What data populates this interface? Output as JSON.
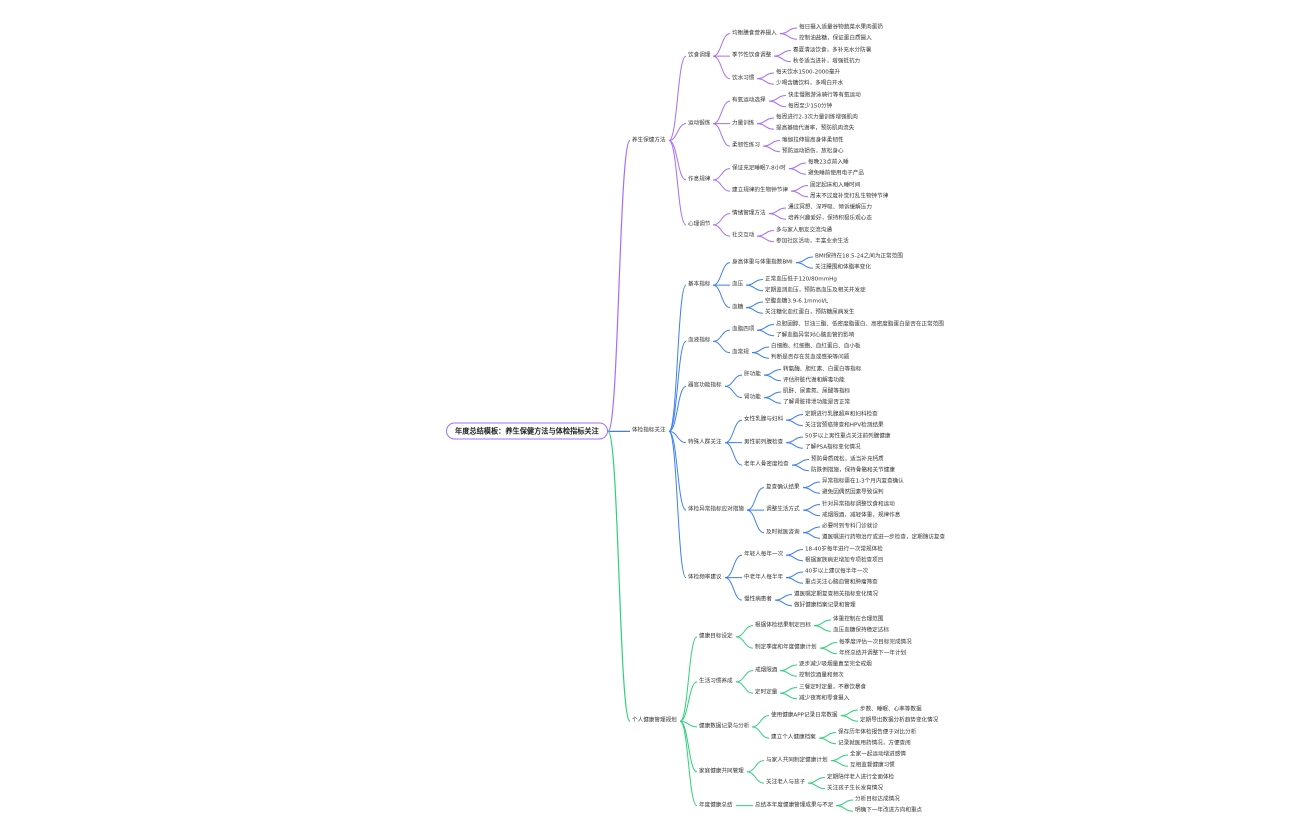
{
  "mindmap": {
    "root": "年度总结模板：养生保健方法与体检指标关注",
    "branches": [
      {
        "label": "养生保健方法",
        "color": "#a66cff",
        "children": [
          {
            "label": "饮食调理",
            "children": [
              {
                "label": "均衡膳食营养摄入",
                "children": [
                  {
                    "label": "每日摄入适量谷物蔬菜水果肉蛋奶"
                  },
                  {
                    "label": "控制油盐糖，保证蛋白质摄入"
                  }
                ]
              },
              {
                "label": "季节性饮食调整",
                "children": [
                  {
                    "label": "春夏清淡饮食，多补充水分防暑"
                  },
                  {
                    "label": "秋冬适当进补，增强抵抗力"
                  }
                ]
              },
              {
                "label": "饮水习惯",
                "children": [
                  {
                    "label": "每天饮水1500-2000毫升"
                  },
                  {
                    "label": "少喝含糖饮料，多喝白开水"
                  }
                ]
              }
            ]
          },
          {
            "label": "运动锻炼",
            "children": [
              {
                "label": "有氧运动选择",
                "children": [
                  {
                    "label": "快走慢跑游泳骑行等有氧运动"
                  },
                  {
                    "label": "每周至少150分钟"
                  }
                ]
              },
              {
                "label": "力量训练",
                "children": [
                  {
                    "label": "每周进行2-3次力量训练增强肌肉"
                  },
                  {
                    "label": "提高基础代谢率，预防肌肉流失"
                  }
                ]
              },
              {
                "label": "柔韧性练习",
                "children": [
                  {
                    "label": "瑜伽拉伸提高身体柔韧性"
                  },
                  {
                    "label": "预防运动损伤，放松身心"
                  }
                ]
              }
            ]
          },
          {
            "label": "作息规律",
            "children": [
              {
                "label": "保证充足睡眠7-8小时",
                "children": [
                  {
                    "label": "每晚23点前入睡"
                  },
                  {
                    "label": "避免睡前使用电子产品"
                  }
                ]
              },
              {
                "label": "建立规律的生物钟节律",
                "children": [
                  {
                    "label": "固定起床和入睡时间"
                  },
                  {
                    "label": "周末不过度补觉打乱生物钟节律"
                  }
                ]
              }
            ]
          },
          {
            "label": "心理调节",
            "children": [
              {
                "label": "情绪管理方法",
                "children": [
                  {
                    "label": "通过冥想、深呼吸、倾诉缓解压力"
                  },
                  {
                    "label": "培养兴趣爱好，保持积极乐观心态"
                  }
                ]
              },
              {
                "label": "社交互动",
                "children": [
                  {
                    "label": "多与家人朋友交流沟通"
                  },
                  {
                    "label": "参加社区活动，丰富业余生活"
                  }
                ]
              }
            ]
          }
        ]
      },
      {
        "label": "体检指标关注",
        "color": "#3d7ef5",
        "children": [
          {
            "label": "基本指标",
            "children": [
              {
                "label": "身高体重与体重指数BMI",
                "children": [
                  {
                    "label": "BMI保持在18.5-24之间为正常范围"
                  },
                  {
                    "label": "关注腰围和体脂率变化"
                  }
                ]
              },
              {
                "label": "血压",
                "children": [
                  {
                    "label": "正常血压低于120/80mmHg"
                  },
                  {
                    "label": "定期监测血压，预防高血压及相关并发症"
                  }
                ]
              },
              {
                "label": "血糖",
                "children": [
                  {
                    "label": "空腹血糖3.9-6.1mmol/L"
                  },
                  {
                    "label": "关注糖化血红蛋白，预防糖尿病发生"
                  }
                ]
              }
            ]
          },
          {
            "label": "血液指标",
            "children": [
              {
                "label": "血脂四项",
                "children": [
                  {
                    "label": "总胆固醇、甘油三酯、低密度脂蛋白、高密度脂蛋白是否在正常范围"
                  },
                  {
                    "label": "了解血脂异常对心脑血管的影响"
                  }
                ]
              },
              {
                "label": "血常规",
                "children": [
                  {
                    "label": "白细胞、红细胞、血红蛋白、血小板"
                  },
                  {
                    "label": "判断是否存在贫血或感染等问题"
                  }
                ]
              }
            ]
          },
          {
            "label": "器官功能指标",
            "children": [
              {
                "label": "肝功能",
                "children": [
                  {
                    "label": "转氨酶、胆红素、白蛋白等指标"
                  },
                  {
                    "label": "评估肝脏代谢和解毒功能"
                  }
                ]
              },
              {
                "label": "肾功能",
                "children": [
                  {
                    "label": "肌酐、尿素氮、尿酸等指标"
                  },
                  {
                    "label": "了解肾脏排泄功能是否正常"
                  }
                ]
              }
            ]
          },
          {
            "label": "特殊人群关注",
            "children": [
              {
                "label": "女性乳腺与妇科",
                "children": [
                  {
                    "label": "定期进行乳腺超声和妇科检查"
                  },
                  {
                    "label": "关注宫颈癌筛查和HPV检测结果"
                  }
                ]
              },
              {
                "label": "男性前列腺检查",
                "children": [
                  {
                    "label": "50岁以上男性重点关注前列腺健康"
                  },
                  {
                    "label": "了解PSA指标变化情况"
                  }
                ]
              },
              {
                "label": "老年人骨密度检查",
                "children": [
                  {
                    "label": "预防骨质疏松，适当补充钙质"
                  },
                  {
                    "label": "防跌倒措施，保持骨骼和关节健康"
                  }
                ]
              }
            ]
          },
          {
            "label": "体检异常指标应对措施",
            "children": [
              {
                "label": "复查确认结果",
                "children": [
                  {
                    "label": "异常指标需在1-3个月内复查确认"
                  },
                  {
                    "label": "避免因偶然因素导致误判"
                  }
                ]
              },
              {
                "label": "调整生活方式",
                "children": [
                  {
                    "label": "针对异常指标调整饮食和运动"
                  },
                  {
                    "label": "戒烟限酒，减轻体重，规律作息"
                  }
                ]
              },
              {
                "label": "及时就医咨询",
                "children": [
                  {
                    "label": "必要时到专科门诊就诊"
                  },
                  {
                    "label": "遵医嘱进行药物治疗或进一步检查，定期随访复查"
                  }
                ]
              }
            ]
          },
          {
            "label": "体检频率建议",
            "children": [
              {
                "label": "年轻人每年一次",
                "children": [
                  {
                    "label": "18-40岁每年进行一次常规体检"
                  },
                  {
                    "label": "根据家族病史增加专项检查项目"
                  }
                ]
              },
              {
                "label": "中老年人每半年",
                "children": [
                  {
                    "label": "40岁以上建议每半年一次"
                  },
                  {
                    "label": "重点关注心脑血管和肿瘤筛查"
                  }
                ]
              },
              {
                "label": "慢性病患者",
                "children": [
                  {
                    "label": "遵医嘱定期复查相关指标变化情况"
                  },
                  {
                    "label": "做好健康档案记录和管理"
                  }
                ]
              }
            ]
          }
        ]
      },
      {
        "label": "个人健康管理规划",
        "color": "#2fd07a",
        "children": [
          {
            "label": "健康目标设定",
            "children": [
              {
                "label": "根据体检结果制定目标",
                "children": [
                  {
                    "label": "体重控制在合理范围"
                  },
                  {
                    "label": "血压血糖保持稳定达标"
                  }
                ]
              },
              {
                "label": "制定季度和年度健康计划",
                "children": [
                  {
                    "label": "每季度评估一次目标完成情况"
                  },
                  {
                    "label": "年终总结并调整下一年计划"
                  }
                ]
              }
            ]
          },
          {
            "label": "生活习惯养成",
            "children": [
              {
                "label": "戒烟限酒",
                "children": [
                  {
                    "label": "逐步减少吸烟量直至完全戒烟"
                  },
                  {
                    "label": "控制饮酒量和频次"
                  }
                ]
              },
              {
                "label": "定时定量",
                "children": [
                  {
                    "label": "三餐定时定量，不暴饮暴食"
                  },
                  {
                    "label": "减少夜宵和零食摄入"
                  }
                ]
              }
            ]
          },
          {
            "label": "健康数据记录与分析",
            "children": [
              {
                "label": "使用健康APP记录日常数据",
                "children": [
                  {
                    "label": "步数、睡眠、心率等数据"
                  },
                  {
                    "label": "定期导出数据分析趋势变化情况"
                  }
                ]
              },
              {
                "label": "建立个人健康档案",
                "children": [
                  {
                    "label": "保存历年体检报告便于对比分析"
                  },
                  {
                    "label": "记录就医用药情况，方便查阅"
                  }
                ]
              }
            ]
          },
          {
            "label": "家庭健康共同管理",
            "children": [
              {
                "label": "与家人共同制定健康计划",
                "children": [
                  {
                    "label": "全家一起运动增进感情"
                  },
                  {
                    "label": "互相监督健康习惯"
                  }
                ]
              },
              {
                "label": "关注老人与孩子",
                "children": [
                  {
                    "label": "定期陪伴老人进行全面体检"
                  },
                  {
                    "label": "关注孩子生长发育情况"
                  }
                ]
              }
            ]
          },
          {
            "label": "年度健康总结",
            "children": [
              {
                "label": "总结本年度健康管理成果与不足",
                "children": [
                  {
                    "label": "分析目标达成情况"
                  },
                  {
                    "label": "明确下一年改进方向和重点"
                  }
                ]
              }
            ]
          }
        ]
      }
    ]
  }
}
